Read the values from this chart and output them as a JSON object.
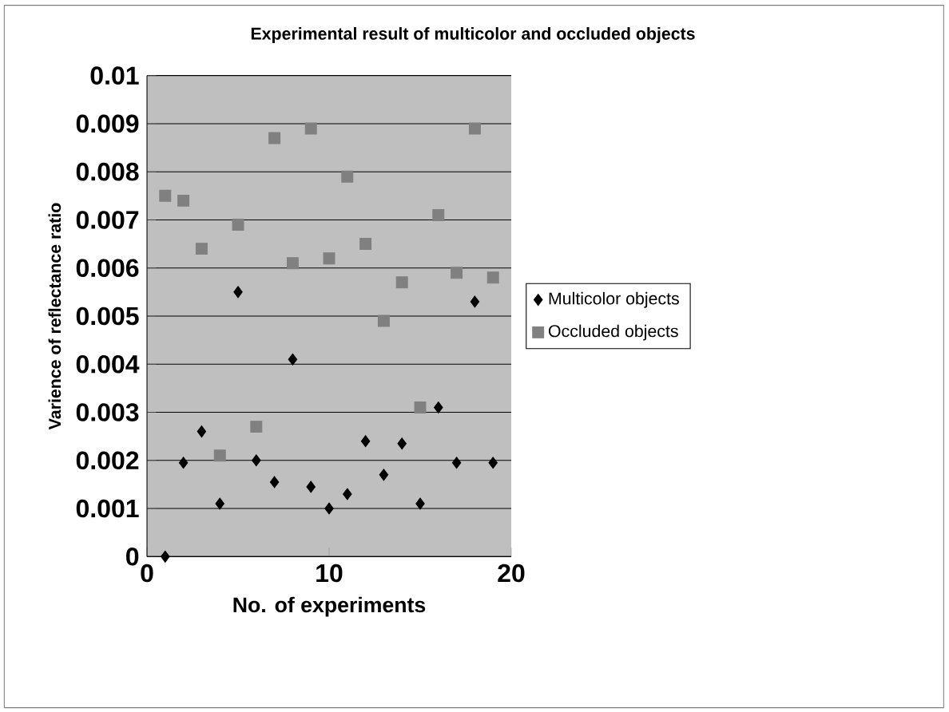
{
  "chart_data": {
    "type": "scatter",
    "title": "Experimental result of multicolor and occluded objects",
    "xlabel": "No. of experiments",
    "ylabel": "Varience of reflectance ratio",
    "x": [
      1,
      2,
      3,
      4,
      5,
      6,
      7,
      8,
      9,
      10,
      11,
      12,
      13,
      14,
      15,
      16,
      17,
      18,
      19
    ],
    "series": [
      {
        "name": "Multicolor objects",
        "color": "#000000",
        "marker": "diamond",
        "values": [
          0,
          0.00195,
          0.0026,
          0.0011,
          0.0055,
          0.002,
          0.00155,
          0.0041,
          0.00145,
          0.001,
          0.0013,
          0.0024,
          0.0017,
          0.00235,
          0.0011,
          0.0031,
          0.00195,
          0.0053,
          0.00195
        ]
      },
      {
        "name": "Occluded objects",
        "color": "#808080",
        "marker": "square",
        "values": [
          0.0075,
          0.0074,
          0.0064,
          0.0021,
          0.0069,
          0.0027,
          0.0087,
          0.0061,
          0.0089,
          0.0062,
          0.0079,
          0.0065,
          0.0049,
          0.0057,
          0.0031,
          0.0071,
          0.0059,
          0.0089,
          0.0058
        ]
      }
    ],
    "xlim": [
      0,
      20
    ],
    "xticks": [
      0,
      10,
      20
    ],
    "ylim": [
      0,
      0.01
    ],
    "yticks": [
      0,
      0.001,
      0.002,
      0.003,
      0.004,
      0.005,
      0.006,
      0.007,
      0.008,
      0.009,
      0.01
    ],
    "grid": "y",
    "legend": "right"
  }
}
